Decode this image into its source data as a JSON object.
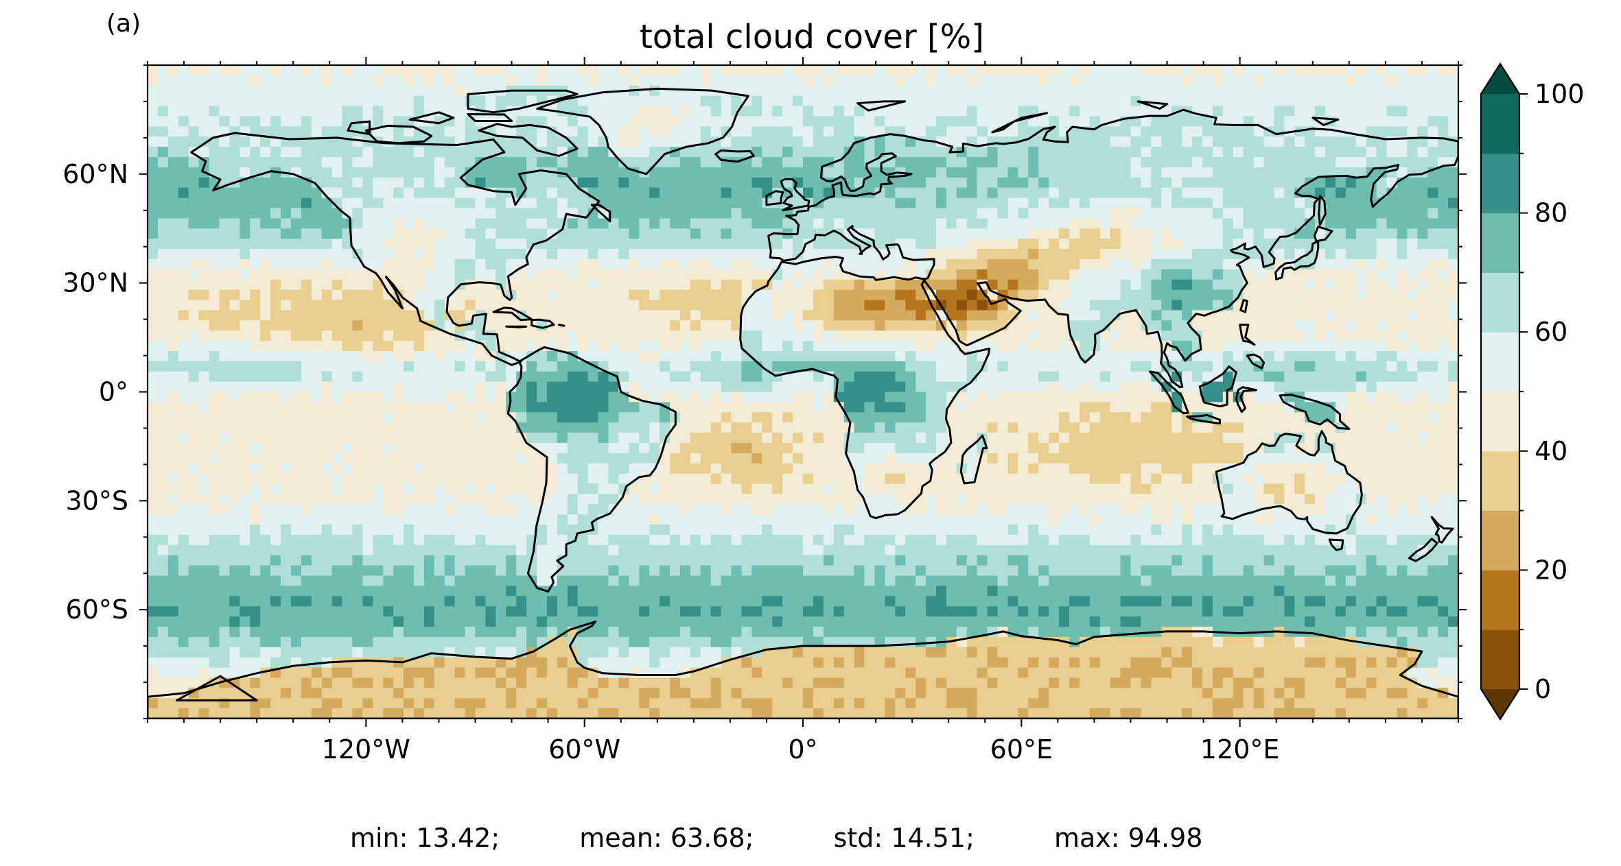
{
  "panel_label": "(a)",
  "title": "total cloud cover [%]",
  "stats": {
    "min": "min: 13.42;",
    "mean": "mean: 63.68;",
    "std": "std: 14.51;",
    "max": "max: 94.98"
  },
  "colorbar": {
    "extend": "both",
    "tick_labels": [
      "0",
      "20",
      "40",
      "60",
      "80",
      "100"
    ],
    "tick_values": [
      0,
      20,
      40,
      60,
      80,
      100
    ],
    "levels": [
      0,
      10,
      20,
      30,
      40,
      50,
      60,
      70,
      80,
      90,
      100
    ],
    "colors": [
      "#8c510a",
      "#b5761e",
      "#d4aa5e",
      "#e8cf90",
      "#f5ebd5",
      "#e0f1ef",
      "#b0dfd7",
      "#6dbdb0",
      "#36908a",
      "#0e6b5e"
    ],
    "under_color": "#5e3706",
    "over_color": "#054c40"
  },
  "map": {
    "projection": "PlateCarree",
    "xlim": [
      -180,
      180
    ],
    "ylim": [
      -90,
      90
    ],
    "x_ticks": [
      -120,
      -60,
      0,
      60,
      120
    ],
    "x_tick_labels": [
      "120°W",
      "60°W",
      "0°",
      "60°E",
      "120°E"
    ],
    "y_ticks": [
      60,
      30,
      0,
      -30,
      -60
    ],
    "y_tick_labels": [
      "60°N",
      "30°N",
      "0°",
      "30°S",
      "60°S"
    ],
    "coastline_color": "#000000"
  }
}
